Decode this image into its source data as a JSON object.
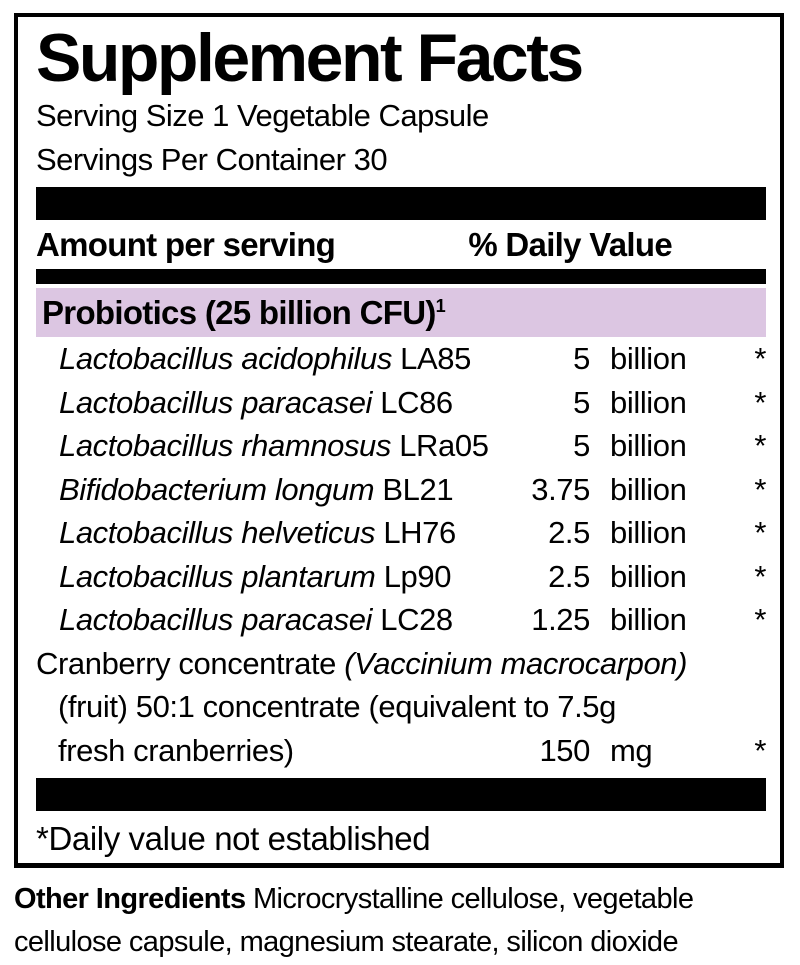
{
  "panel": {
    "title": "Supplement Facts",
    "serving_size": "Serving Size 1 Vegetable Capsule",
    "servings_per_container": "Servings Per Container 30",
    "columns": {
      "amount": "Amount per serving",
      "daily_value": "% Daily Value"
    },
    "group": {
      "heading": "Probiotics (25 billion CFU)",
      "footnote_marker": "1"
    },
    "probiotics": [
      {
        "species": "Lactobacillus acidophilus",
        "strain": "LA85",
        "amount": "5",
        "unit": "billion",
        "dv": "*"
      },
      {
        "species": "Lactobacillus paracasei",
        "strain": "LC86",
        "amount": "5",
        "unit": "billion",
        "dv": "*"
      },
      {
        "species": "Lactobacillus rhamnosus",
        "strain": "LRa05",
        "amount": "5",
        "unit": "billion",
        "dv": "*"
      },
      {
        "species": "Bifidobacterium longum",
        "strain": "BL21",
        "amount": "3.75",
        "unit": "billion",
        "dv": "*"
      },
      {
        "species": "Lactobacillus helveticus",
        "strain": "LH76",
        "amount": "2.5",
        "unit": "billion",
        "dv": "*"
      },
      {
        "species": "Lactobacillus plantarum",
        "strain": "Lp90",
        "amount": "2.5",
        "unit": "billion",
        "dv": "*"
      },
      {
        "species": "Lactobacillus paracasei",
        "strain": "LC28",
        "amount": "1.25",
        "unit": "billion",
        "dv": "*"
      }
    ],
    "cranberry": {
      "name": "Cranberry concentrate ",
      "latin": "(Vaccinium macrocarpon)",
      "line2": "(fruit) 50:1 concentrate (equivalent to 7.5g",
      "line3": "fresh cranberries)",
      "amount": "150",
      "unit": "mg",
      "dv": "*"
    },
    "footnote": "*Daily value not established"
  },
  "other_ingredients": {
    "label": "Other Ingredients",
    "line1_rest": " Microcrystalline cellulose, vegetable",
    "line2": "cellulose capsule, magnesium stearate, silicon dioxide"
  },
  "colors": {
    "highlight": "#dcc6e2",
    "bar": "#000000",
    "text": "#000000"
  }
}
